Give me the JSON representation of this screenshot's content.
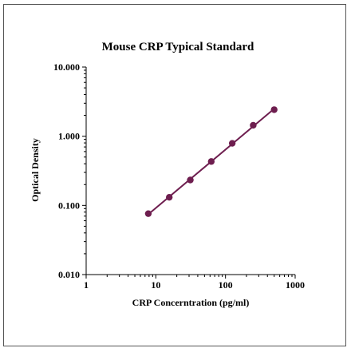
{
  "chart_data": {
    "type": "line",
    "title": "Mouse CRP Typical Standard",
    "xlabel": "CRP Concerntration (pg/ml)",
    "ylabel": "Optical Density",
    "x_scale": "log",
    "y_scale": "log",
    "xlim": [
      1,
      1000
    ],
    "ylim": [
      0.01,
      10
    ],
    "x_ticks": [
      1,
      10,
      100,
      1000
    ],
    "x_tick_labels": [
      "1",
      "10",
      "100",
      "1000"
    ],
    "y_ticks": [
      0.01,
      0.1,
      1,
      10
    ],
    "y_tick_labels": [
      "0.010",
      "0.100",
      "1.000",
      "10.000"
    ],
    "grid": false,
    "series": [
      {
        "color": "#6e1e4f",
        "x": [
          7.8,
          15.6,
          31.25,
          62.5,
          125,
          250,
          500
        ],
        "y": [
          0.076,
          0.131,
          0.233,
          0.431,
          0.79,
          1.44,
          2.42
        ]
      }
    ]
  }
}
